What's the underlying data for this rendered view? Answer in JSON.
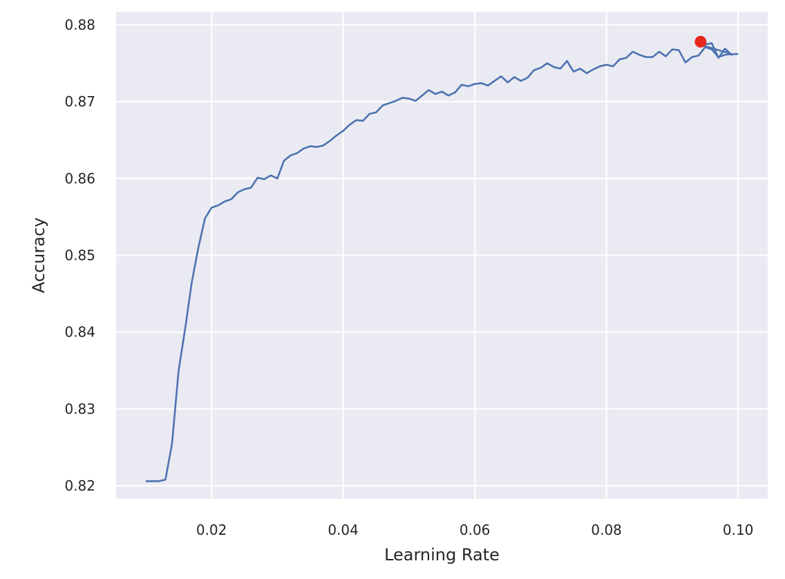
{
  "chart_data": {
    "type": "line",
    "title": "",
    "xlabel": "Learning Rate",
    "ylabel": "Accuracy",
    "xlim": [
      0.0055,
      0.1045
    ],
    "ylim": [
      0.8183,
      0.8817
    ],
    "grid": true,
    "legend": "none",
    "colors": {
      "background": "#eaeaf2",
      "grid": "#ffffff",
      "line": "#4c72b0",
      "highlight": "#e8281c"
    },
    "xticks": [
      {
        "value": 0.02,
        "label": "0.02"
      },
      {
        "value": 0.04,
        "label": "0.04"
      },
      {
        "value": 0.06,
        "label": "0.06"
      },
      {
        "value": 0.08,
        "label": "0.08"
      },
      {
        "value": 0.1,
        "label": "0.10"
      }
    ],
    "yticks": [
      {
        "value": 0.82,
        "label": "0.82"
      },
      {
        "value": 0.83,
        "label": "0.83"
      },
      {
        "value": 0.84,
        "label": "0.84"
      },
      {
        "value": 0.85,
        "label": "0.85"
      },
      {
        "value": 0.86,
        "label": "0.86"
      },
      {
        "value": 0.87,
        "label": "0.87"
      },
      {
        "value": 0.88,
        "label": "0.88"
      }
    ],
    "series": [
      {
        "points": [
          [
            0.01,
            0.8206
          ],
          [
            0.011,
            0.8206
          ],
          [
            0.012,
            0.8206
          ],
          [
            0.013,
            0.8208
          ],
          [
            0.014,
            0.8255
          ],
          [
            0.015,
            0.835
          ],
          [
            0.016,
            0.8405
          ],
          [
            0.017,
            0.8465
          ],
          [
            0.018,
            0.851
          ],
          [
            0.019,
            0.8548
          ],
          [
            0.02,
            0.8562
          ],
          [
            0.021,
            0.8565
          ],
          [
            0.022,
            0.857
          ],
          [
            0.023,
            0.8573
          ],
          [
            0.024,
            0.8582
          ],
          [
            0.025,
            0.8586
          ],
          [
            0.026,
            0.8588
          ],
          [
            0.027,
            0.8601
          ],
          [
            0.028,
            0.8599
          ],
          [
            0.029,
            0.8604
          ],
          [
            0.03,
            0.86
          ],
          [
            0.031,
            0.8623
          ],
          [
            0.032,
            0.863
          ],
          [
            0.033,
            0.8633
          ],
          [
            0.034,
            0.8639
          ],
          [
            0.035,
            0.8642
          ],
          [
            0.036,
            0.8641
          ],
          [
            0.037,
            0.8643
          ],
          [
            0.038,
            0.8649
          ],
          [
            0.039,
            0.8656
          ],
          [
            0.04,
            0.8662
          ],
          [
            0.041,
            0.867
          ],
          [
            0.042,
            0.8676
          ],
          [
            0.043,
            0.8675
          ],
          [
            0.044,
            0.8684
          ],
          [
            0.045,
            0.8686
          ],
          [
            0.046,
            0.8695
          ],
          [
            0.047,
            0.8698
          ],
          [
            0.048,
            0.8701
          ],
          [
            0.049,
            0.8705
          ],
          [
            0.05,
            0.8704
          ],
          [
            0.051,
            0.8701
          ],
          [
            0.052,
            0.8708
          ],
          [
            0.053,
            0.8715
          ],
          [
            0.054,
            0.871
          ],
          [
            0.055,
            0.8713
          ],
          [
            0.056,
            0.8708
          ],
          [
            0.057,
            0.8712
          ],
          [
            0.058,
            0.8722
          ],
          [
            0.059,
            0.872
          ],
          [
            0.06,
            0.8723
          ],
          [
            0.061,
            0.8724
          ],
          [
            0.062,
            0.8721
          ],
          [
            0.063,
            0.8727
          ],
          [
            0.064,
            0.8733
          ],
          [
            0.065,
            0.8725
          ],
          [
            0.066,
            0.8732
          ],
          [
            0.067,
            0.8727
          ],
          [
            0.068,
            0.8731
          ],
          [
            0.069,
            0.8741
          ],
          [
            0.07,
            0.8744
          ],
          [
            0.071,
            0.875
          ],
          [
            0.072,
            0.8745
          ],
          [
            0.073,
            0.8743
          ],
          [
            0.074,
            0.8753
          ],
          [
            0.075,
            0.8739
          ],
          [
            0.076,
            0.8743
          ],
          [
            0.077,
            0.8737
          ],
          [
            0.078,
            0.8742
          ],
          [
            0.079,
            0.8746
          ],
          [
            0.08,
            0.8748
          ],
          [
            0.081,
            0.8746
          ],
          [
            0.082,
            0.8755
          ],
          [
            0.083,
            0.8757
          ],
          [
            0.084,
            0.8765
          ],
          [
            0.085,
            0.8761
          ],
          [
            0.086,
            0.8758
          ],
          [
            0.087,
            0.8758
          ],
          [
            0.088,
            0.8765
          ],
          [
            0.089,
            0.8759
          ],
          [
            0.09,
            0.8768
          ],
          [
            0.091,
            0.8767
          ],
          [
            0.092,
            0.8751
          ],
          [
            0.093,
            0.8758
          ],
          [
            0.094,
            0.876
          ],
          [
            0.095,
            0.8771
          ],
          [
            0.096,
            0.8768
          ],
          [
            0.097,
            0.8758
          ],
          [
            0.098,
            0.8761
          ],
          [
            0.099,
            0.8762
          ],
          [
            0.0943,
            0.8774
          ],
          [
            0.0946,
            0.8774
          ],
          [
            0.096,
            0.8776
          ],
          [
            0.097,
            0.8757
          ],
          [
            0.098,
            0.8769
          ],
          [
            0.099,
            0.8761
          ],
          [
            0.0995,
            0.8762
          ],
          [
            0.1,
            0.8762
          ]
        ]
      }
    ],
    "highlight_point": {
      "x": 0.0943,
      "y": 0.8778
    }
  }
}
